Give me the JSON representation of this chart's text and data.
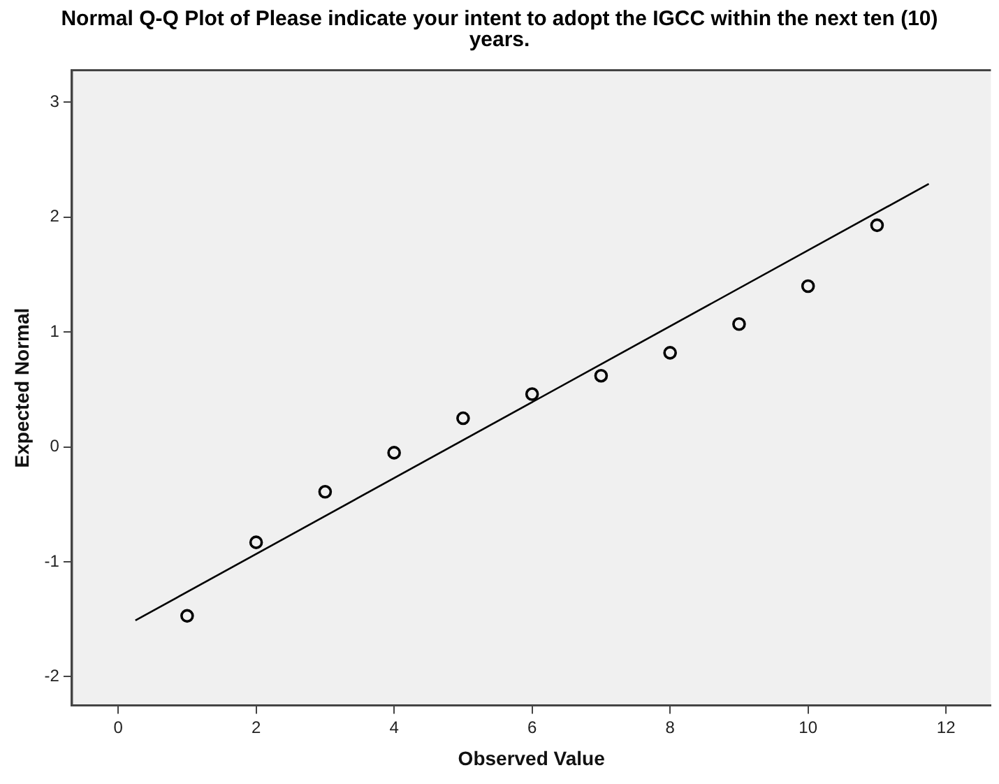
{
  "chart_data": {
    "type": "scatter",
    "title": "Normal Q-Q Plot of Please indicate your intent to adopt the IGCC within the next ten (10) years.",
    "xlabel": "Observed Value",
    "ylabel": "Expected Normal",
    "xlim": [
      -0.67,
      12.65
    ],
    "xticks": [
      0,
      2,
      4,
      6,
      8,
      10,
      12
    ],
    "ylim": [
      -2.25,
      3.28
    ],
    "yticks": [
      -2,
      -1,
      0,
      1,
      2,
      3
    ],
    "grid": false,
    "legend": false,
    "marker": "circle",
    "series": [
      {
        "color": "#000000",
        "x": [
          1,
          2,
          3,
          4,
          5,
          6,
          7,
          8,
          9,
          10,
          11
        ],
        "values": [
          -1.47,
          -0.83,
          -0.39,
          -0.05,
          0.25,
          0.46,
          0.62,
          0.82,
          1.07,
          1.4,
          1.93
        ]
      },
      {
        "type": "line",
        "color": "#000000",
        "x": [
          0.25,
          11.75
        ],
        "values": [
          -1.51,
          2.29
        ],
        "marker": "none",
        "line_style": "solid"
      }
    ]
  }
}
